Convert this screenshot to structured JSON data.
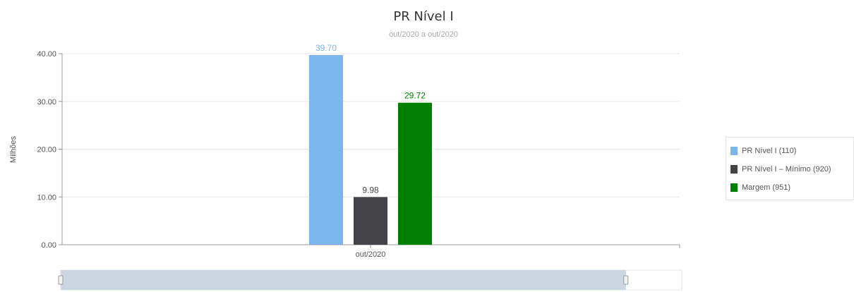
{
  "chart_data": {
    "type": "bar",
    "title": "PR Nível I",
    "subtitle": "out/2020 a out/2020",
    "ylabel": "Milhões",
    "xlabel": "",
    "categories": [
      "out/2020"
    ],
    "ylim": [
      0,
      40
    ],
    "yticks": [
      "0.00",
      "10.00",
      "20.00",
      "30.00",
      "40.00"
    ],
    "grid": true,
    "legend_position": "right",
    "series": [
      {
        "name": "PR Nível I (110)",
        "values": [
          39.7
        ],
        "label": "39.70",
        "color": "#7cb5ec"
      },
      {
        "name": "PR Nível I – Mínimo (920)",
        "values": [
          9.98
        ],
        "label": "9.98",
        "color": "#434348"
      },
      {
        "name": "Margem (951)",
        "values": [
          29.72
        ],
        "label": "29.72",
        "color": "#008000"
      }
    ]
  },
  "navigator": {
    "range_start": 0,
    "range_end": 0.91
  }
}
